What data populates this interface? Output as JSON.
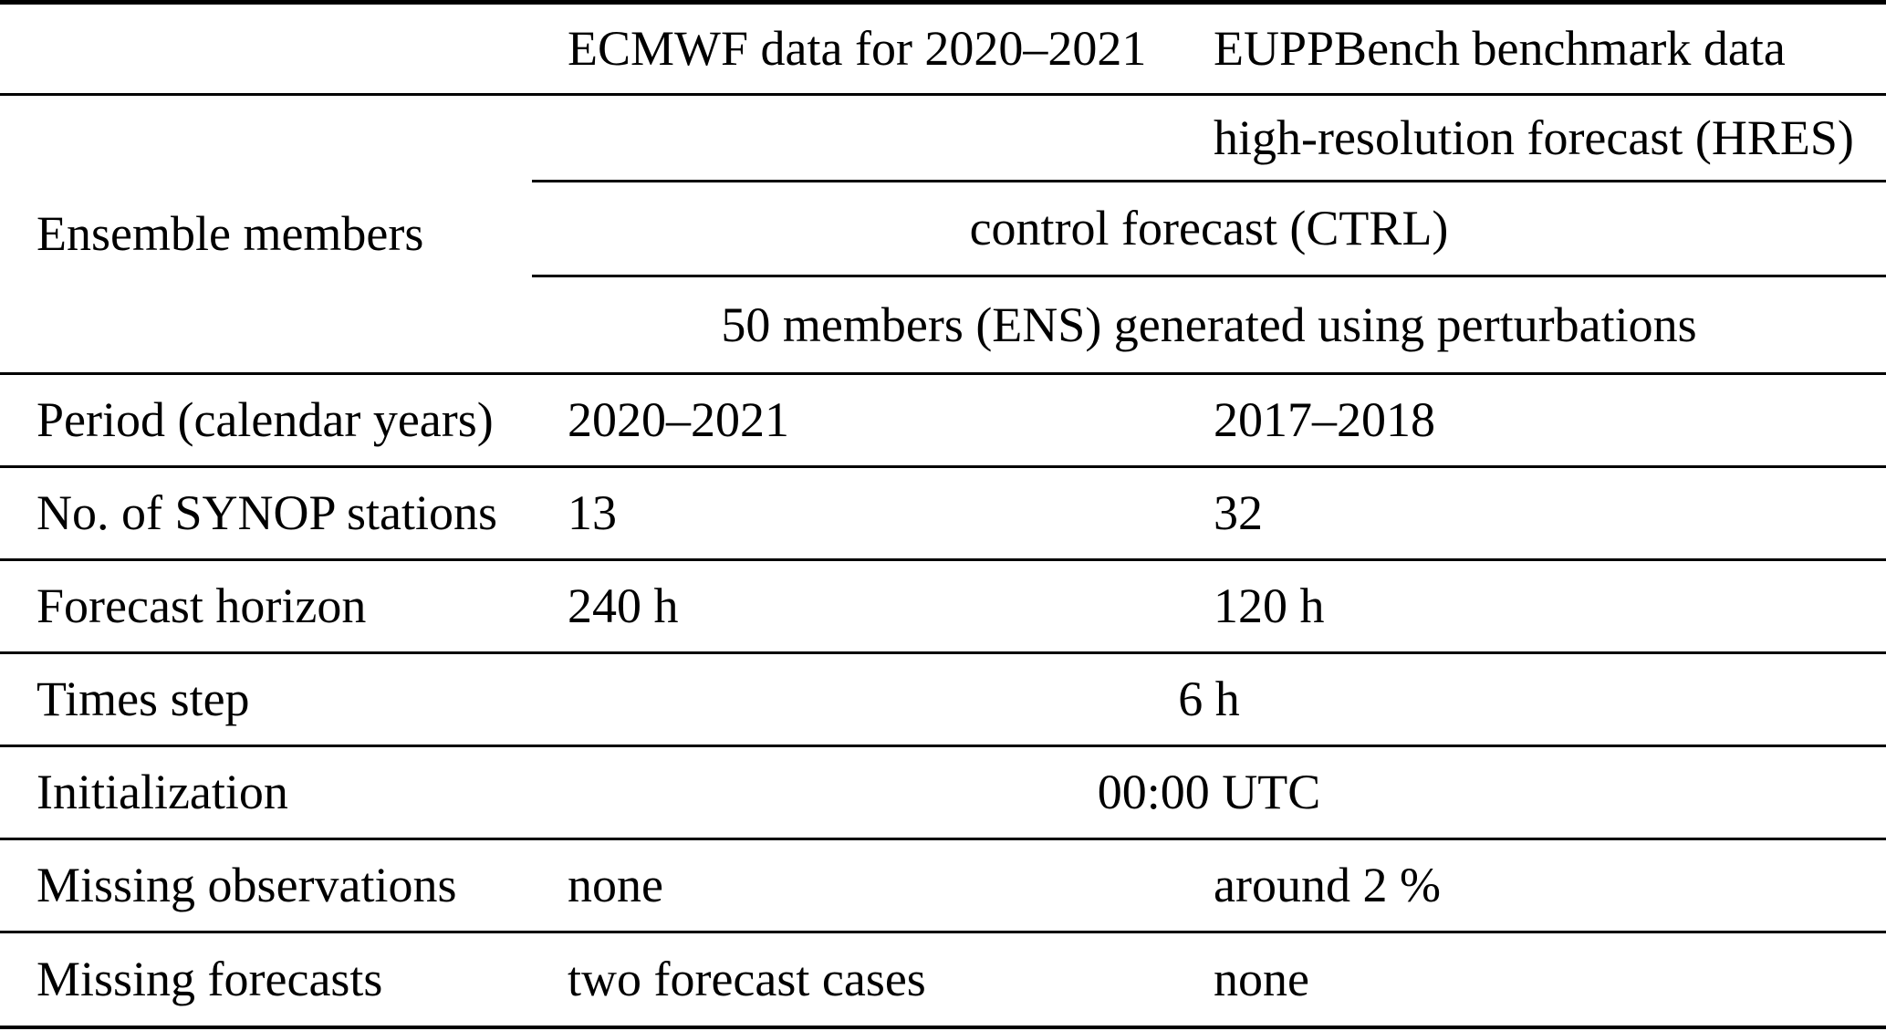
{
  "table": {
    "col_headers": {
      "ecmwf": "ECMWF data for 2020–2021",
      "euppbench": "EUPPBench benchmark data"
    },
    "ensemble": {
      "label": "Ensemble members",
      "hres": "high-resolution forecast (HRES)",
      "ctrl": "control forecast (CTRL)",
      "ens": "50 members (ENS) generated using perturbations"
    },
    "rows": [
      {
        "label": "Period (calendar years)",
        "ecmwf": "2020–2021",
        "euppbench": "2017–2018"
      },
      {
        "label": "No. of SYNOP stations",
        "ecmwf": "13",
        "euppbench": "32"
      },
      {
        "label": "Forecast horizon",
        "ecmwf": "240 h",
        "euppbench": "120 h"
      },
      {
        "label": "Times step",
        "both": "6 h"
      },
      {
        "label": "Initialization",
        "both": "00:00 UTC"
      },
      {
        "label": "Missing observations",
        "ecmwf": "none",
        "euppbench": "around 2 %"
      },
      {
        "label": "Missing forecasts",
        "ecmwf": "two forecast cases",
        "euppbench": "none"
      }
    ]
  },
  "colors": {
    "text": "#000000",
    "rule": "#000000",
    "background": "#ffffff"
  }
}
